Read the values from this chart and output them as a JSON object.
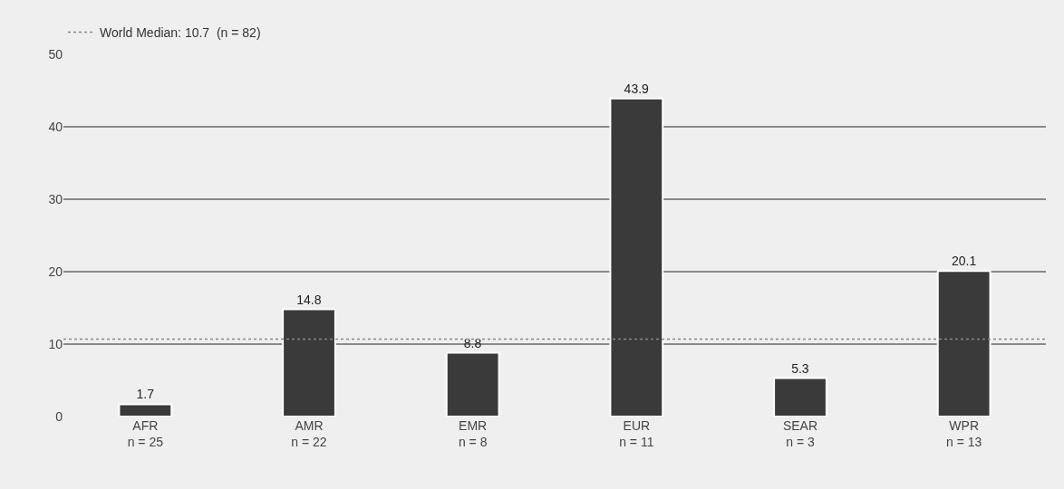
{
  "chart_data": {
    "type": "bar",
    "categories": [
      "AFR\nn = 25",
      "AMR\nn = 22",
      "EMR\nn = 8",
      "EUR\nn = 11",
      "SEAR\nn = 3",
      "WPR\nn = 13"
    ],
    "values": [
      1.7,
      14.8,
      8.8,
      43.9,
      5.3,
      20.1
    ],
    "color": "#3a3a3a",
    "ylim": [
      0,
      50
    ],
    "yticks": [
      0,
      10,
      20,
      30,
      40,
      50
    ],
    "grid": "y",
    "data_labels": true,
    "legend": "top left",
    "ref_lines": [
      {
        "axis": "y",
        "value": 10.7,
        "label": "World Median: 10.7  (n = 82)",
        "color": "#888888",
        "line_style": "dotted"
      }
    ]
  }
}
